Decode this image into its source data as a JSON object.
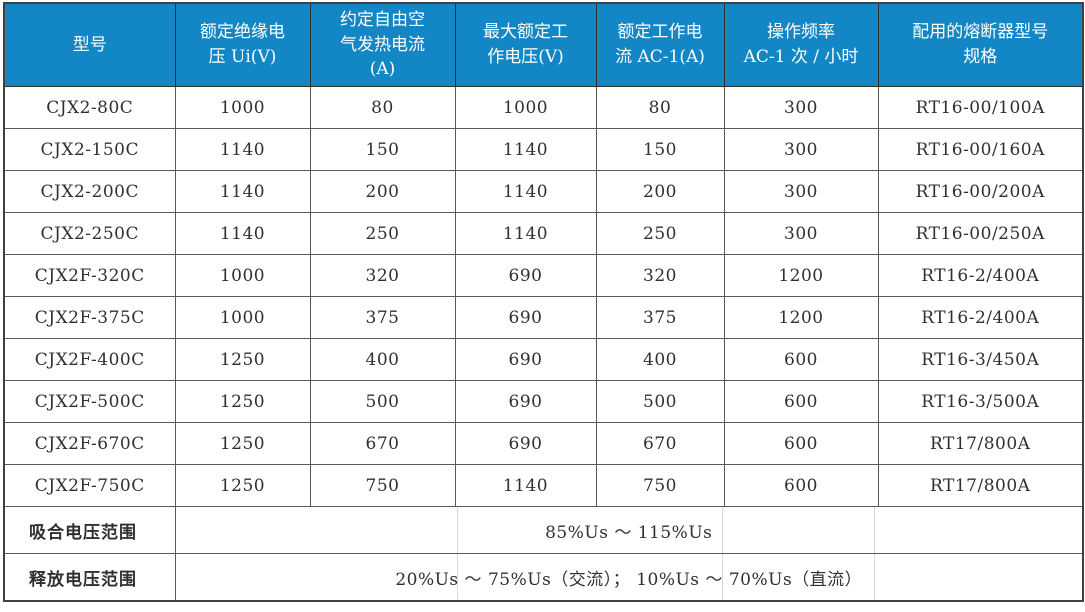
{
  "colors": {
    "header_bg": "#1386C6",
    "header_text": "#FFFFFF",
    "body_text": "#303030",
    "grid_border": "#595959"
  },
  "table": {
    "columns": [
      {
        "id": "model",
        "label": "型号"
      },
      {
        "id": "rated-insulation-voltage",
        "label": "额定绝缘电\n压 Ui(V)"
      },
      {
        "id": "conventional-free-air-thermal-current",
        "label": "约定自由空\n气发热电流\n(A)"
      },
      {
        "id": "max-rated-operating-voltage",
        "label": "最大额定工\n作电压(V)"
      },
      {
        "id": "rated-operating-current-ac1",
        "label": "额定工作电\n流 AC-1(A)"
      },
      {
        "id": "operating-frequency",
        "label": "操作频率\nAC-1 次 / 小时"
      },
      {
        "id": "matching-fuse-model",
        "label": "配用的熔断器型号\n规格"
      }
    ],
    "rows": [
      [
        "CJX2-80C",
        "1000",
        "80",
        "1000",
        "80",
        "300",
        "RT16-00/100A"
      ],
      [
        "CJX2-150C",
        "1140",
        "150",
        "1140",
        "150",
        "300",
        "RT16-00/160A"
      ],
      [
        "CJX2-200C",
        "1140",
        "200",
        "1140",
        "200",
        "300",
        "RT16-00/200A"
      ],
      [
        "CJX2-250C",
        "1140",
        "250",
        "1140",
        "250",
        "300",
        "RT16-00/250A"
      ],
      [
        "CJX2F-320C",
        "1000",
        "320",
        "690",
        "320",
        "1200",
        "RT16-2/400A"
      ],
      [
        "CJX2F-375C",
        "1000",
        "375",
        "690",
        "375",
        "1200",
        "RT16-2/400A"
      ],
      [
        "CJX2F-400C",
        "1250",
        "400",
        "690",
        "400",
        "600",
        "RT16-3/450A"
      ],
      [
        "CJX2F-500C",
        "1250",
        "500",
        "690",
        "500",
        "600",
        "RT16-3/500A"
      ],
      [
        "CJX2F-670C",
        "1250",
        "670",
        "690",
        "670",
        "600",
        "RT17/800A"
      ],
      [
        "CJX2F-750C",
        "1250",
        "750",
        "1140",
        "750",
        "600",
        "RT17/800A"
      ]
    ],
    "footer_rows": [
      {
        "label": "吸合电压范围",
        "value": "85%Us ～ 115%Us"
      },
      {
        "label": "释放电压范围",
        "value": "20%Us ～ 75%Us（交流）； 10%Us ～ 70%Us（直流）"
      }
    ]
  }
}
